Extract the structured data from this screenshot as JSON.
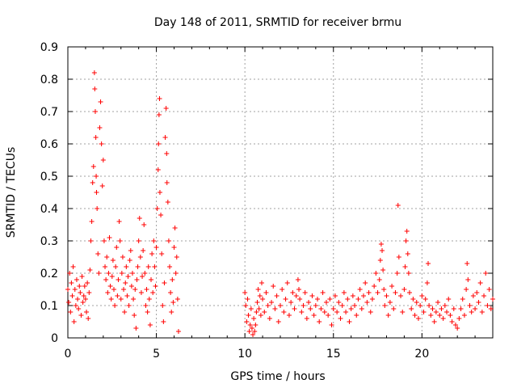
{
  "chart_data": {
    "type": "scatter",
    "title": "Day 148 of 2011, SRMTID for receiver brmu",
    "xlabel": "GPS time / hours",
    "ylabel": "SRMTID / TECUs",
    "xlim": [
      0,
      24
    ],
    "ylim": [
      0,
      0.9
    ],
    "xticks": [
      0,
      5,
      10,
      15,
      20
    ],
    "xtick_labels": [
      "0",
      "5",
      "10",
      "15",
      "20"
    ],
    "yticks": [
      0,
      0.1,
      0.2,
      0.3,
      0.4,
      0.5,
      0.6,
      0.7,
      0.8,
      0.9
    ],
    "ytick_labels": [
      "0",
      "0.1",
      "0.2",
      "0.3",
      "0.4",
      "0.5",
      "0.6",
      "0.7",
      "0.8",
      "0.9"
    ],
    "grid": true,
    "marker": "+",
    "color": "#ff0000",
    "series": [
      {
        "name": "brmu",
        "points": [
          [
            0.0,
            0.15
          ],
          [
            0.05,
            0.11
          ],
          [
            0.1,
            0.2
          ],
          [
            0.15,
            0.08
          ],
          [
            0.2,
            0.17
          ],
          [
            0.25,
            0.13
          ],
          [
            0.3,
            0.22
          ],
          [
            0.35,
            0.05
          ],
          [
            0.4,
            0.15
          ],
          [
            0.45,
            0.1
          ],
          [
            0.5,
            0.18
          ],
          [
            0.55,
            0.12
          ],
          [
            0.6,
            0.09
          ],
          [
            0.65,
            0.16
          ],
          [
            0.7,
            0.14
          ],
          [
            0.75,
            0.07
          ],
          [
            0.8,
            0.19
          ],
          [
            0.85,
            0.11
          ],
          [
            0.9,
            0.13
          ],
          [
            0.95,
            0.16
          ],
          [
            1.0,
            0.12
          ],
          [
            1.05,
            0.08
          ],
          [
            1.1,
            0.17
          ],
          [
            1.15,
            0.06
          ],
          [
            1.2,
            0.14
          ],
          [
            1.25,
            0.21
          ],
          [
            1.3,
            0.3
          ],
          [
            1.35,
            0.36
          ],
          [
            1.4,
            0.48
          ],
          [
            1.45,
            0.53
          ],
          [
            1.5,
            0.82
          ],
          [
            1.52,
            0.77
          ],
          [
            1.55,
            0.7
          ],
          [
            1.58,
            0.62
          ],
          [
            1.6,
            0.5
          ],
          [
            1.62,
            0.45
          ],
          [
            1.65,
            0.4
          ],
          [
            1.7,
            0.26
          ],
          [
            1.75,
            0.2
          ],
          [
            1.8,
            0.65
          ],
          [
            1.85,
            0.73
          ],
          [
            1.9,
            0.6
          ],
          [
            1.95,
            0.47
          ],
          [
            2.0,
            0.55
          ],
          [
            2.05,
            0.3
          ],
          [
            2.1,
            0.22
          ],
          [
            2.15,
            0.18
          ],
          [
            2.2,
            0.25
          ],
          [
            2.25,
            0.14
          ],
          [
            2.3,
            0.2
          ],
          [
            2.35,
            0.31
          ],
          [
            2.4,
            0.16
          ],
          [
            2.45,
            0.12
          ],
          [
            2.5,
            0.19
          ],
          [
            2.55,
            0.24
          ],
          [
            2.6,
            0.15
          ],
          [
            2.65,
            0.1
          ],
          [
            2.7,
            0.22
          ],
          [
            2.75,
            0.28
          ],
          [
            2.8,
            0.13
          ],
          [
            2.85,
            0.18
          ],
          [
            2.9,
            0.36
          ],
          [
            2.95,
            0.3
          ],
          [
            3.0,
            0.12
          ],
          [
            3.05,
            0.2
          ],
          [
            3.1,
            0.25
          ],
          [
            3.15,
            0.15
          ],
          [
            3.2,
            0.08
          ],
          [
            3.25,
            0.17
          ],
          [
            3.3,
            0.22
          ],
          [
            3.35,
            0.13
          ],
          [
            3.4,
            0.19
          ],
          [
            3.45,
            0.1
          ],
          [
            3.5,
            0.24
          ],
          [
            3.55,
            0.27
          ],
          [
            3.6,
            0.16
          ],
          [
            3.65,
            0.2
          ],
          [
            3.7,
            0.12
          ],
          [
            3.75,
            0.07
          ],
          [
            3.8,
            0.15
          ],
          [
            3.85,
            0.03
          ],
          [
            3.9,
            0.18
          ],
          [
            3.95,
            0.22
          ],
          [
            4.0,
            0.3
          ],
          [
            4.05,
            0.37
          ],
          [
            4.1,
            0.25
          ],
          [
            4.15,
            0.14
          ],
          [
            4.2,
            0.19
          ],
          [
            4.25,
            0.27
          ],
          [
            4.3,
            0.35
          ],
          [
            4.35,
            0.2
          ],
          [
            4.4,
            0.1
          ],
          [
            4.45,
            0.15
          ],
          [
            4.5,
            0.08
          ],
          [
            4.55,
            0.22
          ],
          [
            4.6,
            0.12
          ],
          [
            4.65,
            0.04
          ],
          [
            4.7,
            0.18
          ],
          [
            4.75,
            0.26
          ],
          [
            4.8,
            0.14
          ],
          [
            4.85,
            0.3
          ],
          [
            4.9,
            0.22
          ],
          [
            4.95,
            0.16
          ],
          [
            5.0,
            0.28
          ],
          [
            5.05,
            0.4
          ],
          [
            5.1,
            0.52
          ],
          [
            5.12,
            0.6
          ],
          [
            5.15,
            0.69
          ],
          [
            5.18,
            0.74
          ],
          [
            5.2,
            0.45
          ],
          [
            5.25,
            0.38
          ],
          [
            5.3,
            0.26
          ],
          [
            5.35,
            0.1
          ],
          [
            5.4,
            0.05
          ],
          [
            5.45,
            0.17
          ],
          [
            5.5,
            0.62
          ],
          [
            5.55,
            0.71
          ],
          [
            5.58,
            0.57
          ],
          [
            5.6,
            0.48
          ],
          [
            5.65,
            0.42
          ],
          [
            5.7,
            0.3
          ],
          [
            5.75,
            0.22
          ],
          [
            5.8,
            0.14
          ],
          [
            5.85,
            0.08
          ],
          [
            5.9,
            0.18
          ],
          [
            5.95,
            0.11
          ],
          [
            6.0,
            0.28
          ],
          [
            6.05,
            0.34
          ],
          [
            6.1,
            0.2
          ],
          [
            6.15,
            0.25
          ],
          [
            6.2,
            0.12
          ],
          [
            6.25,
            0.02
          ],
          [
            10.0,
            0.14
          ],
          [
            10.05,
            0.1
          ],
          [
            10.1,
            0.05
          ],
          [
            10.15,
            0.12
          ],
          [
            10.2,
            0.07
          ],
          [
            10.25,
            0.02
          ],
          [
            10.3,
            0.04
          ],
          [
            10.35,
            0.09
          ],
          [
            10.4,
            0.03
          ],
          [
            10.45,
            0.01
          ],
          [
            10.5,
            0.06
          ],
          [
            10.55,
            0.02
          ],
          [
            10.6,
            0.04
          ],
          [
            10.65,
            0.08
          ],
          [
            10.7,
            0.11
          ],
          [
            10.75,
            0.15
          ],
          [
            10.8,
            0.09
          ],
          [
            10.85,
            0.13
          ],
          [
            10.9,
            0.07
          ],
          [
            10.95,
            0.17
          ],
          [
            11.0,
            0.12
          ],
          [
            11.1,
            0.08
          ],
          [
            11.2,
            0.14
          ],
          [
            11.3,
            0.1
          ],
          [
            11.4,
            0.06
          ],
          [
            11.5,
            0.11
          ],
          [
            11.6,
            0.16
          ],
          [
            11.7,
            0.09
          ],
          [
            11.8,
            0.13
          ],
          [
            11.9,
            0.05
          ],
          [
            12.0,
            0.1
          ],
          [
            12.1,
            0.15
          ],
          [
            12.2,
            0.08
          ],
          [
            12.3,
            0.12
          ],
          [
            12.4,
            0.17
          ],
          [
            12.5,
            0.07
          ],
          [
            12.6,
            0.11
          ],
          [
            12.7,
            0.14
          ],
          [
            12.8,
            0.09
          ],
          [
            12.9,
            0.13
          ],
          [
            13.0,
            0.18
          ],
          [
            13.05,
            0.15
          ],
          [
            13.1,
            0.12
          ],
          [
            13.2,
            0.08
          ],
          [
            13.3,
            0.1
          ],
          [
            13.4,
            0.14
          ],
          [
            13.5,
            0.06
          ],
          [
            13.6,
            0.11
          ],
          [
            13.7,
            0.09
          ],
          [
            13.8,
            0.13
          ],
          [
            13.9,
            0.07
          ],
          [
            14.0,
            0.1
          ],
          [
            14.1,
            0.12
          ],
          [
            14.2,
            0.05
          ],
          [
            14.3,
            0.09
          ],
          [
            14.4,
            0.14
          ],
          [
            14.5,
            0.08
          ],
          [
            14.6,
            0.11
          ],
          [
            14.7,
            0.07
          ],
          [
            14.8,
            0.12
          ],
          [
            14.9,
            0.04
          ],
          [
            15.0,
            0.09
          ],
          [
            15.1,
            0.13
          ],
          [
            15.2,
            0.08
          ],
          [
            15.3,
            0.11
          ],
          [
            15.4,
            0.06
          ],
          [
            15.5,
            0.1
          ],
          [
            15.6,
            0.14
          ],
          [
            15.7,
            0.08
          ],
          [
            15.8,
            0.12
          ],
          [
            15.9,
            0.05
          ],
          [
            16.0,
            0.09
          ],
          [
            16.1,
            0.13
          ],
          [
            16.2,
            0.1
          ],
          [
            16.3,
            0.07
          ],
          [
            16.4,
            0.12
          ],
          [
            16.5,
            0.15
          ],
          [
            16.6,
            0.09
          ],
          [
            16.7,
            0.13
          ],
          [
            16.8,
            0.17
          ],
          [
            16.9,
            0.11
          ],
          [
            17.0,
            0.14
          ],
          [
            17.1,
            0.08
          ],
          [
            17.2,
            0.12
          ],
          [
            17.3,
            0.16
          ],
          [
            17.4,
            0.2
          ],
          [
            17.5,
            0.14
          ],
          [
            17.6,
            0.18
          ],
          [
            17.65,
            0.24
          ],
          [
            17.7,
            0.29
          ],
          [
            17.75,
            0.27
          ],
          [
            17.8,
            0.21
          ],
          [
            17.85,
            0.15
          ],
          [
            17.9,
            0.1
          ],
          [
            18.0,
            0.13
          ],
          [
            18.1,
            0.07
          ],
          [
            18.2,
            0.11
          ],
          [
            18.3,
            0.16
          ],
          [
            18.4,
            0.09
          ],
          [
            18.5,
            0.14
          ],
          [
            18.6,
            0.2
          ],
          [
            18.65,
            0.41
          ],
          [
            18.7,
            0.25
          ],
          [
            18.8,
            0.13
          ],
          [
            18.9,
            0.08
          ],
          [
            19.0,
            0.15
          ],
          [
            19.05,
            0.22
          ],
          [
            19.1,
            0.3
          ],
          [
            19.15,
            0.33
          ],
          [
            19.2,
            0.26
          ],
          [
            19.25,
            0.2
          ],
          [
            19.3,
            0.14
          ],
          [
            19.4,
            0.09
          ],
          [
            19.5,
            0.12
          ],
          [
            19.6,
            0.07
          ],
          [
            19.7,
            0.11
          ],
          [
            19.8,
            0.06
          ],
          [
            19.9,
            0.1
          ],
          [
            20.0,
            0.13
          ],
          [
            20.1,
            0.08
          ],
          [
            20.2,
            0.12
          ],
          [
            20.3,
            0.17
          ],
          [
            20.35,
            0.23
          ],
          [
            20.4,
            0.1
          ],
          [
            20.5,
            0.07
          ],
          [
            20.6,
            0.09
          ],
          [
            20.7,
            0.05
          ],
          [
            20.8,
            0.08
          ],
          [
            20.9,
            0.11
          ],
          [
            21.0,
            0.07
          ],
          [
            21.1,
            0.09
          ],
          [
            21.2,
            0.06
          ],
          [
            21.3,
            0.1
          ],
          [
            21.4,
            0.08
          ],
          [
            21.5,
            0.12
          ],
          [
            21.6,
            0.07
          ],
          [
            21.7,
            0.05
          ],
          [
            21.8,
            0.09
          ],
          [
            21.9,
            0.04
          ],
          [
            22.0,
            0.03
          ],
          [
            22.1,
            0.06
          ],
          [
            22.2,
            0.09
          ],
          [
            22.3,
            0.12
          ],
          [
            22.4,
            0.07
          ],
          [
            22.5,
            0.15
          ],
          [
            22.55,
            0.23
          ],
          [
            22.6,
            0.18
          ],
          [
            22.7,
            0.1
          ],
          [
            22.8,
            0.08
          ],
          [
            22.9,
            0.13
          ],
          [
            23.0,
            0.09
          ],
          [
            23.1,
            0.14
          ],
          [
            23.2,
            0.11
          ],
          [
            23.3,
            0.17
          ],
          [
            23.4,
            0.08
          ],
          [
            23.5,
            0.13
          ],
          [
            23.6,
            0.2
          ],
          [
            23.7,
            0.1
          ],
          [
            23.8,
            0.15
          ],
          [
            23.9,
            0.09
          ],
          [
            24.0,
            0.12
          ]
        ]
      }
    ]
  }
}
